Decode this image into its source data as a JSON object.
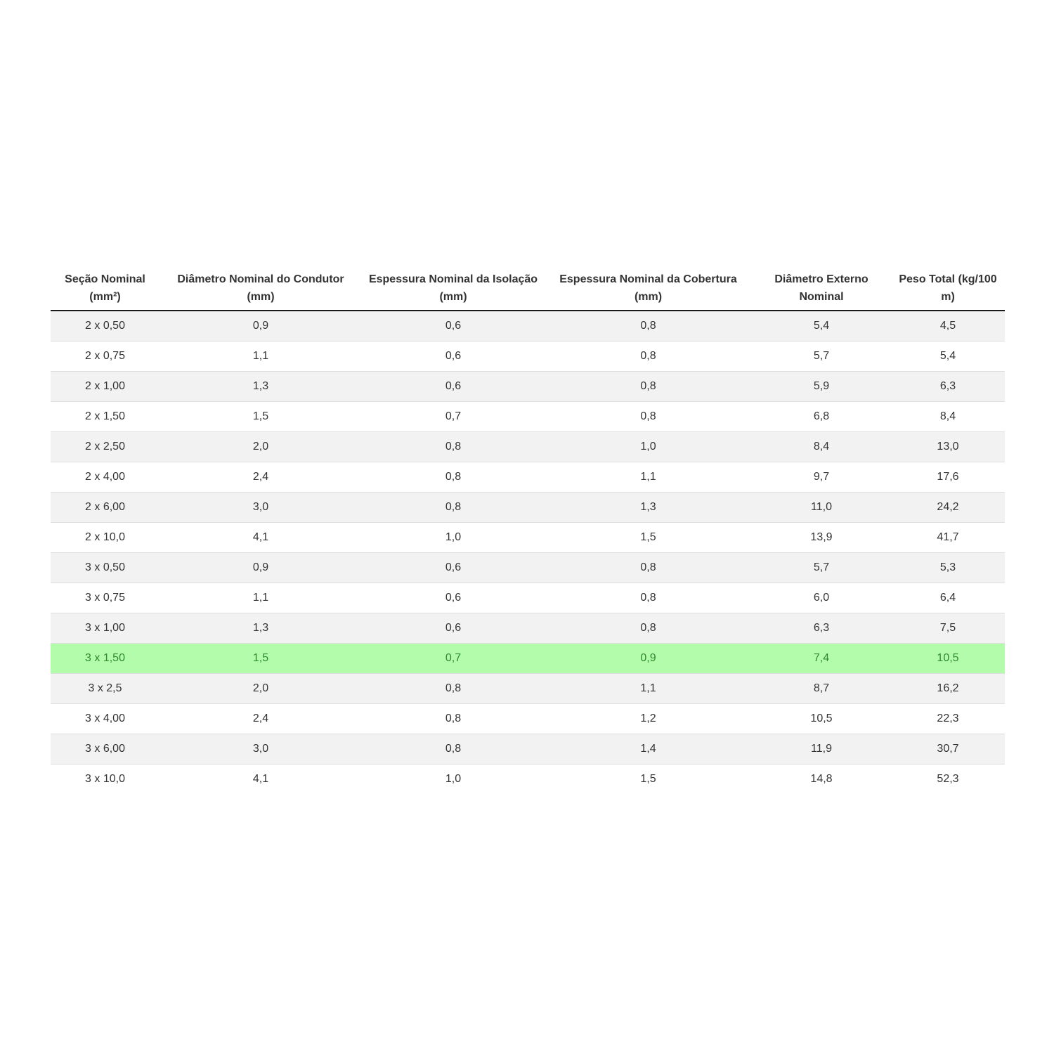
{
  "table": {
    "headers": [
      "Seção Nominal (mm²)",
      "Diâmetro Nominal do Condutor (mm)",
      "Espessura Nominal da Isolação (mm)",
      "Espessura Nominal da Cobertura (mm)",
      "Diâmetro Externo Nominal",
      "Peso Total (kg/100 m)"
    ],
    "rows": [
      [
        "2 x 0,50",
        "0,9",
        "0,6",
        "0,8",
        "5,4",
        "4,5"
      ],
      [
        "2 x 0,75",
        "1,1",
        "0,6",
        "0,8",
        "5,7",
        "5,4"
      ],
      [
        "2 x 1,00",
        "1,3",
        "0,6",
        "0,8",
        "5,9",
        "6,3"
      ],
      [
        "2 x 1,50",
        "1,5",
        "0,7",
        "0,8",
        "6,8",
        "8,4"
      ],
      [
        "2 x 2,50",
        "2,0",
        "0,8",
        "1,0",
        "8,4",
        "13,0"
      ],
      [
        "2 x 4,00",
        "2,4",
        "0,8",
        "1,1",
        "9,7",
        "17,6"
      ],
      [
        "2 x 6,00",
        "3,0",
        "0,8",
        "1,3",
        "11,0",
        "24,2"
      ],
      [
        "2 x 10,0",
        "4,1",
        "1,0",
        "1,5",
        "13,9",
        "41,7"
      ],
      [
        "3 x 0,50",
        "0,9",
        "0,6",
        "0,8",
        "5,7",
        "5,3"
      ],
      [
        "3 x 0,75",
        "1,1",
        "0,6",
        "0,8",
        "6,0",
        "6,4"
      ],
      [
        "3 x 1,00",
        "1,3",
        "0,6",
        "0,8",
        "6,3",
        "7,5"
      ],
      [
        "3 x 1,50",
        "1,5",
        "0,7",
        "0,9",
        "7,4",
        "10,5"
      ],
      [
        "3 x 2,5",
        "2,0",
        "0,8",
        "1,1",
        "8,7",
        "16,2"
      ],
      [
        "3 x 4,00",
        "2,4",
        "0,8",
        "1,2",
        "10,5",
        "22,3"
      ],
      [
        "3 x 6,00",
        "3,0",
        "0,8",
        "1,4",
        "11,9",
        "30,7"
      ],
      [
        "3 x 10,0",
        "4,1",
        "1,0",
        "1,5",
        "14,8",
        "52,3"
      ]
    ],
    "highlighted_row": 11,
    "colors": {
      "highlight_background": "#b2fcac",
      "highlight_text": "#2f8a2a",
      "stripe_background": "#f2f2f2",
      "header_rule": "#1a1a1a"
    }
  }
}
